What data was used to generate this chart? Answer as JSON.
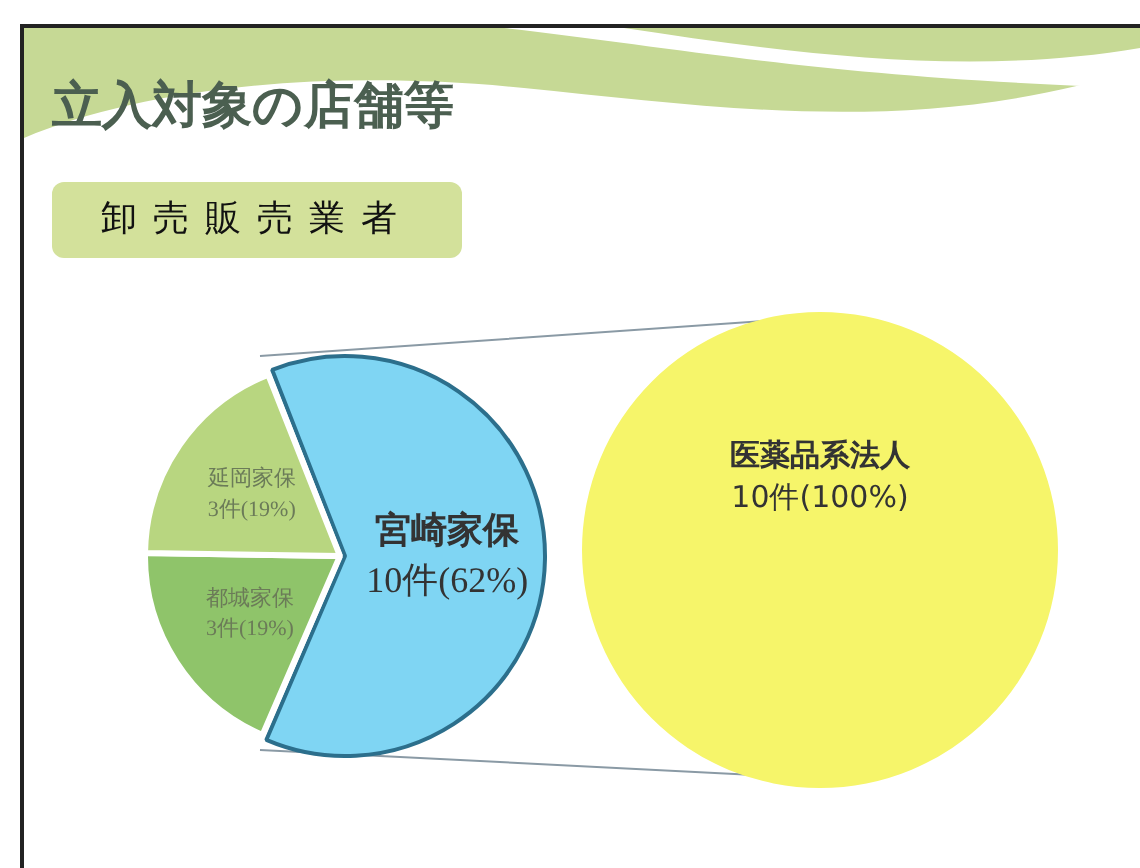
{
  "chart_data": [
    {
      "type": "pie",
      "title": "立入対象の店舗等",
      "subtitle": "卸売販売業者",
      "categories": [
        "宮崎家保",
        "都城家保",
        "延岡家保"
      ],
      "values": [
        10,
        3,
        3
      ],
      "value_labels": [
        "10件(62%)",
        "3件(19%)",
        "3件(19%)"
      ],
      "colors": [
        "#7fd5f3",
        "#8fc46a",
        "#b8d680"
      ],
      "legend": false
    },
    {
      "type": "pie",
      "categories": [
        "医薬品系法人"
      ],
      "values": [
        10
      ],
      "value_labels": [
        "10件(100%)"
      ],
      "colors": [
        "#f6f56a"
      ],
      "legend": false
    }
  ]
}
